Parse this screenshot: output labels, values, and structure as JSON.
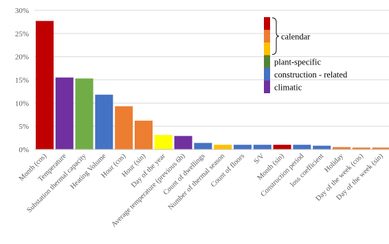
{
  "chart_data": {
    "type": "bar",
    "title": "",
    "xlabel": "",
    "ylabel": "",
    "ylim": [
      0,
      0.3
    ],
    "y_ticks": [
      "0%",
      "5%",
      "10%",
      "15%",
      "20%",
      "25%",
      "30%"
    ],
    "y_tick_values": [
      0,
      0.05,
      0.1,
      0.15,
      0.2,
      0.25,
      0.3
    ],
    "grid": true,
    "legend_position": "top-right",
    "categories": [
      "Month (cos)",
      "Temperature",
      "Substation thermal capacity",
      "Heating Volume",
      "Hour (cos)",
      "Hour (sin)",
      "Day of the year",
      "Average temperature (previous 6h)",
      "Count of dwellings",
      "Number of thermal season",
      "Count of floors",
      "S/V",
      "Month (sin)",
      "Construction period",
      "loss coefficient",
      "Holiday",
      "Day of the week (cos)",
      "Day of the week (sin)"
    ],
    "values": [
      0.277,
      0.155,
      0.153,
      0.118,
      0.093,
      0.062,
      0.031,
      0.029,
      0.014,
      0.01,
      0.01,
      0.01,
      0.01,
      0.01,
      0.008,
      0.005,
      0.004,
      0.004
    ],
    "bar_colors": [
      "#c00000",
      "#7030a0",
      "#70ad47",
      "#4472c4",
      "#ed7d31",
      "#ed7d31",
      "#ffff00",
      "#7030a0",
      "#4472c4",
      "#ffc000",
      "#4472c4",
      "#4472c4",
      "#c00000",
      "#4472c4",
      "#4472c4",
      "#ed7d31",
      "#ed7d31",
      "#ed7d31"
    ],
    "legend": {
      "swatches": [
        "#c00000",
        "#ed7d31",
        "#ffc000",
        "#548235",
        "#4472c4",
        "#7030a0"
      ],
      "labels": [
        {
          "text": "calendar",
          "swatch_start": 0,
          "swatch_end": 2
        },
        {
          "text": "plant-specific",
          "swatch_start": 3,
          "swatch_end": 3
        },
        {
          "text": "construction  - related",
          "swatch_start": 4,
          "swatch_end": 4
        },
        {
          "text": "climatic",
          "swatch_start": 5,
          "swatch_end": 5
        }
      ]
    }
  }
}
